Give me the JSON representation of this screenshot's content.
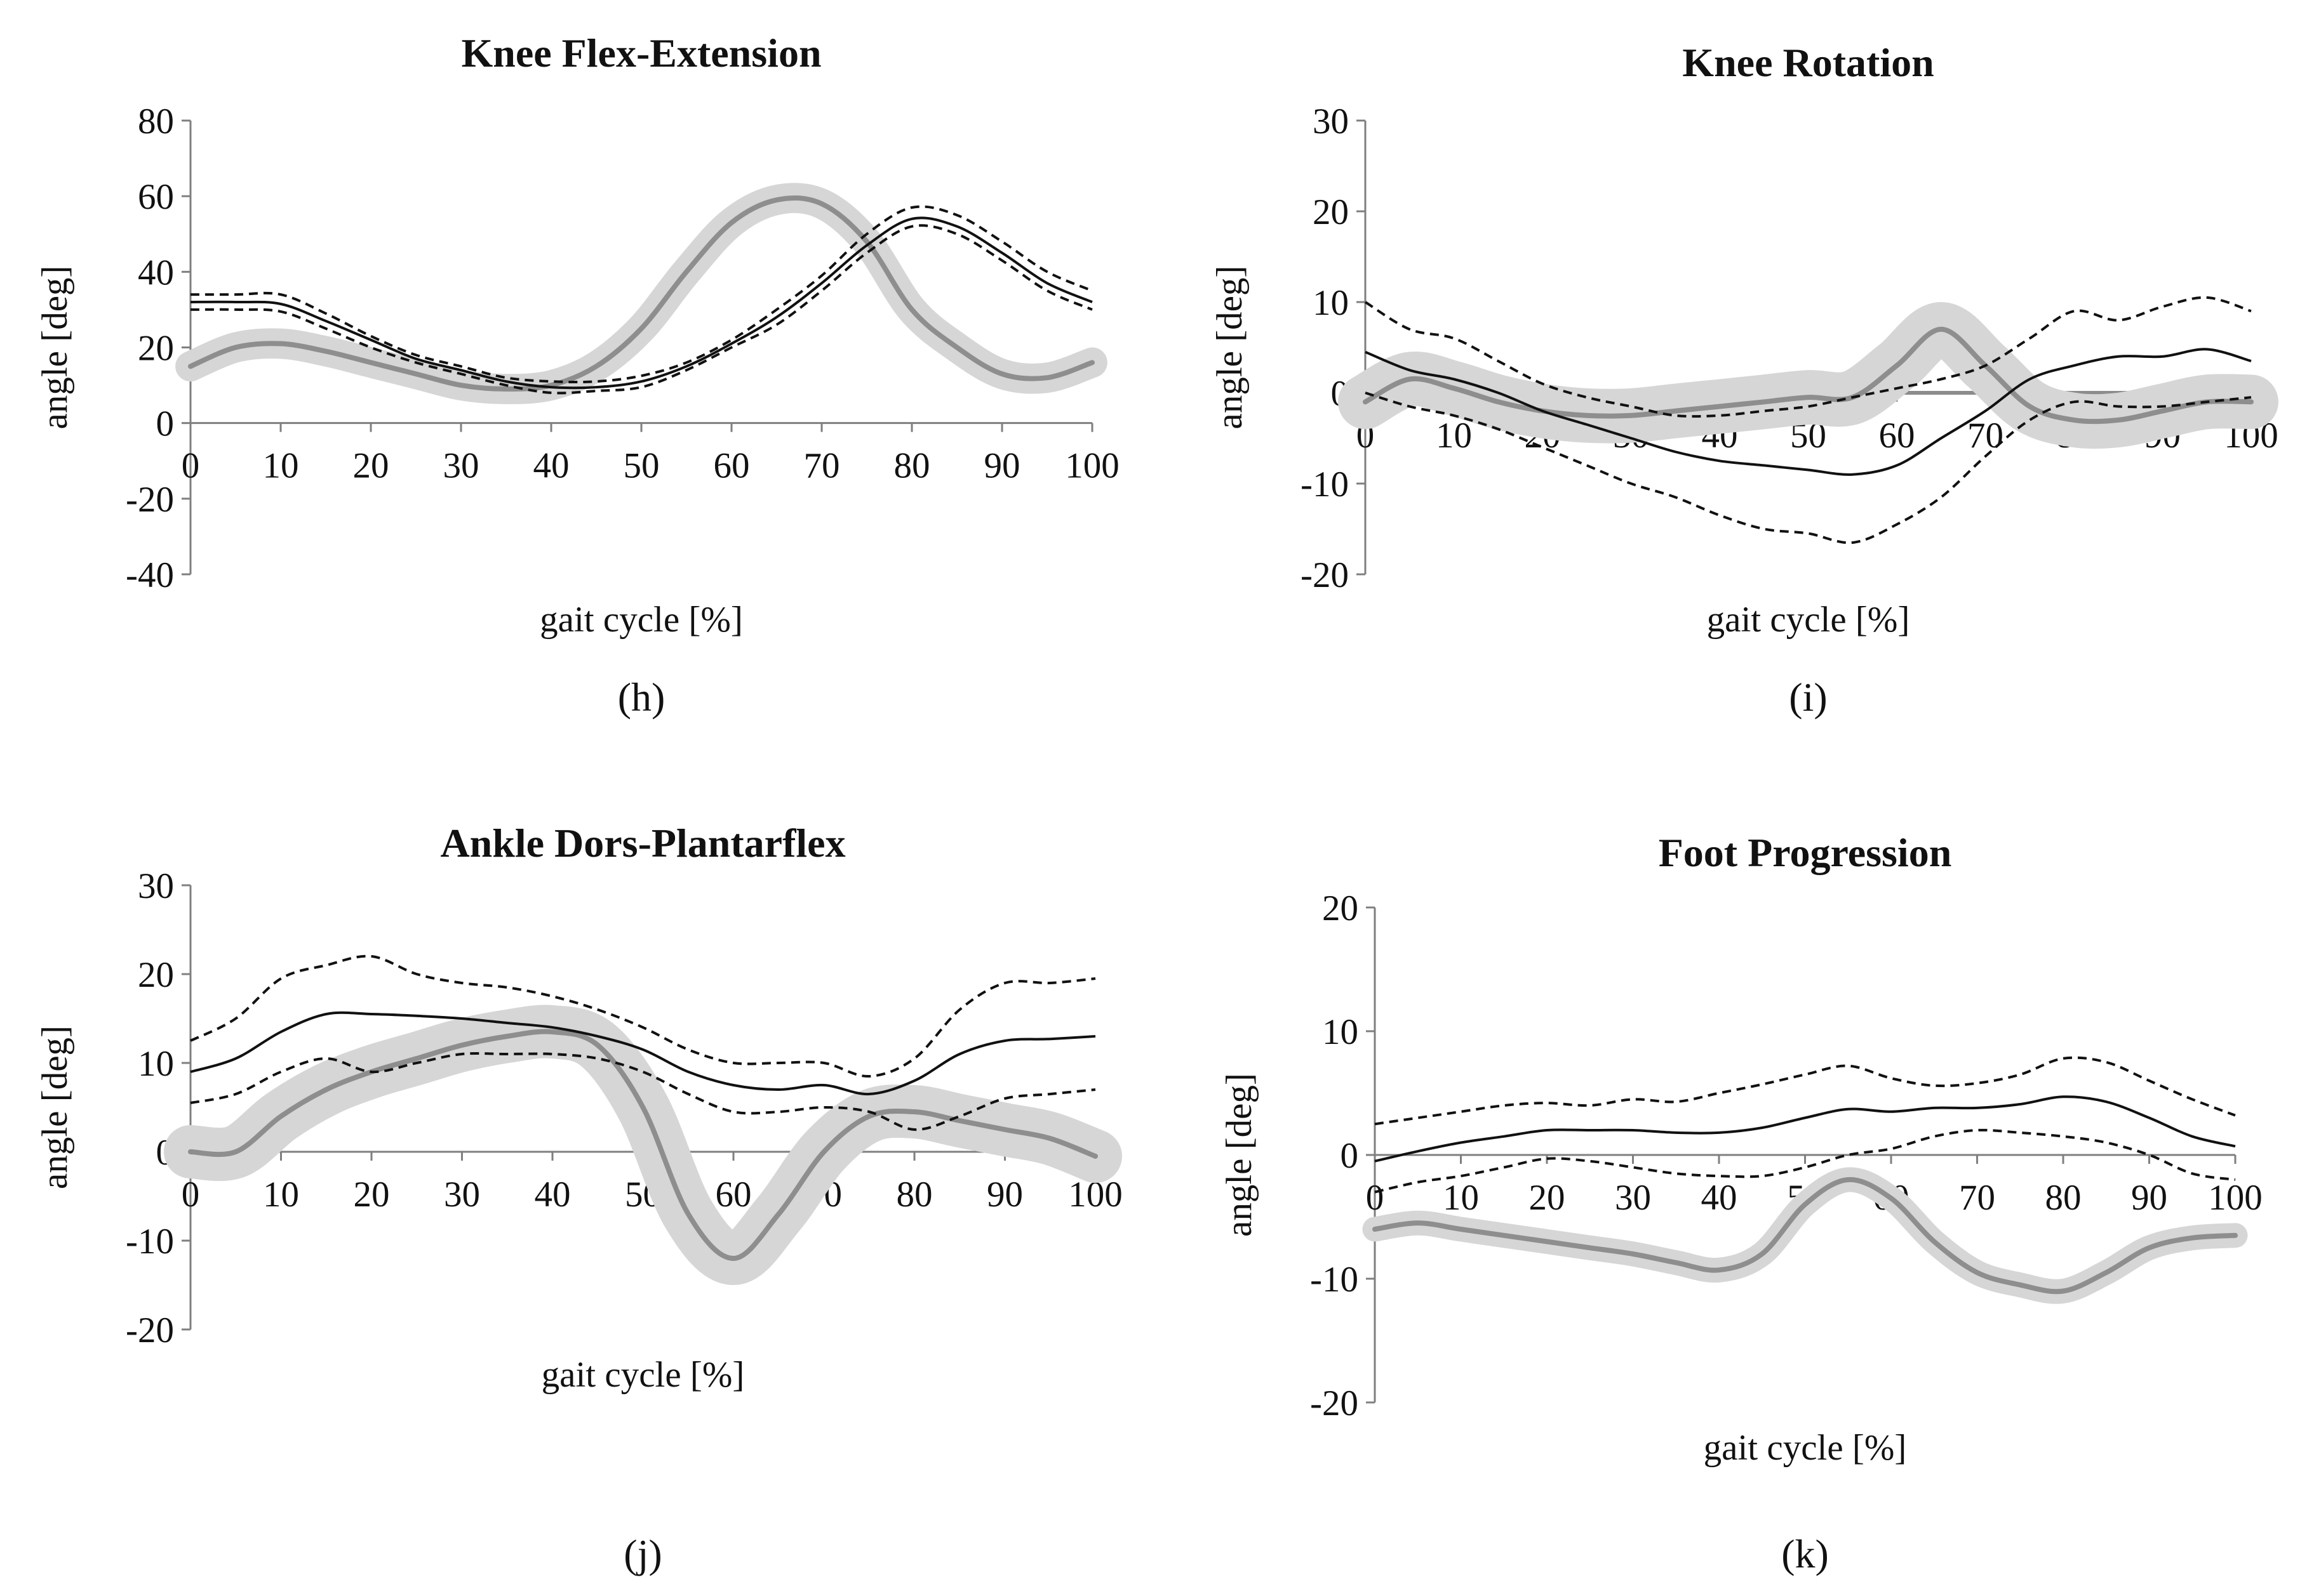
{
  "figure": {
    "panels": [
      "(h)",
      "(i)",
      "(j)",
      "(k)"
    ]
  },
  "chart_data": [
    {
      "type": "line",
      "panel_label": "(h)",
      "title": "Knee Flex-Extension",
      "xlabel": "gait cycle [%]",
      "ylabel": "angle [deg]",
      "xlim": [
        0,
        100
      ],
      "ylim": [
        -40,
        80
      ],
      "xticks": [
        "0",
        "10",
        "20",
        "30",
        "40",
        "50",
        "60",
        "70",
        "80",
        "90",
        "100"
      ],
      "yticks": [
        "80",
        "60",
        "40",
        "20",
        "0",
        "-20",
        "-40"
      ],
      "grid": false,
      "x": [
        0,
        5,
        10,
        15,
        20,
        25,
        30,
        35,
        40,
        45,
        50,
        55,
        60,
        65,
        70,
        75,
        80,
        85,
        90,
        95,
        100
      ],
      "zero_line": false,
      "series": [
        {
          "name": "subject",
          "role": "subject",
          "values": [
            15,
            20,
            21,
            19,
            16,
            13,
            10,
            9,
            10,
            15,
            25,
            40,
            53,
            59,
            58,
            48,
            30,
            20,
            13,
            12,
            16
          ],
          "band": 4
        },
        {
          "name": "reference mean",
          "role": "mean",
          "values": [
            32,
            32,
            31.5,
            27,
            22,
            17,
            14,
            11,
            9.5,
            9.5,
            11,
            15,
            21,
            28,
            37,
            47,
            54,
            52,
            45,
            37,
            32
          ]
        },
        {
          "name": "reference upper",
          "role": "bound",
          "values": [
            34,
            34,
            34,
            29,
            23,
            18,
            15,
            12,
            11,
            11,
            12.5,
            16,
            22,
            30,
            39,
            50,
            57,
            55,
            48,
            40,
            35
          ]
        },
        {
          "name": "reference lower",
          "role": "bound",
          "values": [
            30,
            30,
            29.5,
            25,
            20,
            16,
            13,
            10,
            8,
            8.5,
            9.5,
            14,
            20,
            26,
            35,
            45,
            52,
            50,
            43,
            35,
            30
          ]
        }
      ]
    },
    {
      "type": "line",
      "panel_label": "(i)",
      "title": "Knee Rotation",
      "xlabel": "gait cycle [%]",
      "ylabel": "angle [deg]",
      "xlim": [
        0,
        100
      ],
      "ylim": [
        -20,
        30
      ],
      "xticks": [
        "0",
        "10",
        "20",
        "30",
        "40",
        "50",
        "60",
        "70",
        "80",
        "90",
        "100"
      ],
      "yticks": [
        "30",
        "20",
        "10",
        "0",
        "-10",
        "-20"
      ],
      "grid": false,
      "x": [
        0,
        5,
        10,
        15,
        20,
        25,
        30,
        35,
        40,
        45,
        50,
        55,
        60,
        65,
        70,
        75,
        80,
        85,
        90,
        95,
        100
      ],
      "zero_line": true,
      "series": [
        {
          "name": "subject",
          "role": "subject",
          "values": [
            -1,
            1.5,
            0.5,
            -1,
            -2,
            -2.5,
            -2.5,
            -2,
            -1.5,
            -1,
            -0.5,
            -0.5,
            3,
            7,
            3,
            -1.5,
            -3,
            -3,
            -2,
            -1,
            -1
          ],
          "band": 3
        },
        {
          "name": "reference mean",
          "role": "mean",
          "values": [
            4.5,
            2.5,
            1.5,
            0,
            -2,
            -3.5,
            -5,
            -6.5,
            -7.5,
            -8,
            -8.5,
            -9,
            -8,
            -5,
            -2,
            1.5,
            3,
            4,
            4,
            4.8,
            3.5
          ]
        },
        {
          "name": "reference upper",
          "role": "bound",
          "values": [
            10,
            7,
            6,
            3.5,
            1,
            -0.5,
            -1.5,
            -2.5,
            -2.5,
            -2,
            -1.5,
            -0.5,
            0.5,
            1.5,
            3,
            6,
            9,
            8,
            9.5,
            10.5,
            9
          ]
        },
        {
          "name": "reference lower",
          "role": "bound",
          "values": [
            0,
            -1.5,
            -2.5,
            -4,
            -6,
            -8,
            -10,
            -11.5,
            -13.5,
            -15,
            -15.5,
            -16.5,
            -14.5,
            -11.5,
            -7,
            -3,
            -1,
            -1.5,
            -1.5,
            -1,
            -0.5
          ]
        }
      ]
    },
    {
      "type": "line",
      "panel_label": "(j)",
      "title": "Ankle Dors-Plantarflex",
      "xlabel": "gait cycle [%]",
      "ylabel": "angle [deg]",
      "xlim": [
        0,
        100
      ],
      "ylim": [
        -20,
        30
      ],
      "xticks": [
        "0",
        "10",
        "20",
        "30",
        "40",
        "50",
        "60",
        "70",
        "80",
        "90",
        "100"
      ],
      "yticks": [
        "30",
        "20",
        "10",
        "0",
        "-10",
        "-20"
      ],
      "grid": false,
      "x": [
        0,
        5,
        10,
        15,
        20,
        25,
        30,
        35,
        40,
        45,
        50,
        55,
        60,
        65,
        70,
        75,
        80,
        85,
        90,
        95,
        100
      ],
      "zero_line": false,
      "series": [
        {
          "name": "subject",
          "role": "subject",
          "values": [
            0,
            0,
            4,
            7,
            9,
            10.5,
            12,
            13,
            13.5,
            12,
            5,
            -7,
            -12,
            -7,
            0,
            4,
            4.5,
            3.5,
            2.5,
            1.5,
            -0.5
          ],
          "band": 3
        },
        {
          "name": "reference mean",
          "role": "mean",
          "values": [
            9,
            10.5,
            13.5,
            15.5,
            15.5,
            15.3,
            15,
            14.5,
            14,
            13,
            11.5,
            9,
            7.5,
            7,
            7.5,
            6.5,
            8,
            11,
            12.5,
            12.7,
            13
          ]
        },
        {
          "name": "reference upper",
          "role": "bound",
          "values": [
            12.5,
            15,
            19.5,
            21,
            22,
            20,
            19,
            18.5,
            17.5,
            16,
            14,
            11.5,
            10,
            10,
            10,
            8.5,
            10.5,
            16,
            19,
            19,
            19.5
          ]
        },
        {
          "name": "reference lower",
          "role": "bound",
          "values": [
            5.5,
            6.5,
            9,
            10.5,
            9,
            10,
            11,
            11,
            11,
            10.5,
            9,
            6.5,
            4.5,
            4.5,
            5,
            4.5,
            2.5,
            4,
            6,
            6.5,
            7
          ]
        }
      ]
    },
    {
      "type": "line",
      "panel_label": "(k)",
      "title": "Foot Progression",
      "xlabel": "gait cycle [%]",
      "ylabel": "angle [deg]",
      "xlim": [
        0,
        100
      ],
      "ylim": [
        -20,
        20
      ],
      "xticks": [
        "0",
        "10",
        "20",
        "30",
        "40",
        "50",
        "60",
        "70",
        "80",
        "90",
        "100"
      ],
      "yticks": [
        "20",
        "10",
        "0",
        "-10",
        "-20"
      ],
      "grid": false,
      "x": [
        0,
        5,
        10,
        15,
        20,
        25,
        30,
        35,
        40,
        45,
        50,
        55,
        60,
        65,
        70,
        75,
        80,
        85,
        90,
        95,
        100
      ],
      "zero_line": false,
      "series": [
        {
          "name": "subject",
          "role": "subject",
          "values": [
            -6,
            -5.5,
            -6,
            -6.5,
            -7,
            -7.5,
            -8,
            -8.7,
            -9.3,
            -8,
            -4,
            -2,
            -3.5,
            -7,
            -9.5,
            -10.5,
            -11,
            -9.5,
            -7.5,
            -6.7,
            -6.5
          ],
          "band": 1
        },
        {
          "name": "reference mean",
          "role": "mean",
          "values": [
            -0.5,
            0.3,
            1,
            1.5,
            2,
            2,
            2,
            1.8,
            1.8,
            2.2,
            3,
            3.7,
            3.5,
            3.8,
            3.8,
            4.1,
            4.7,
            4.3,
            3,
            1.5,
            0.7
          ]
        },
        {
          "name": "reference upper",
          "role": "bound",
          "values": [
            2.5,
            3,
            3.5,
            4,
            4.2,
            4,
            4.5,
            4.3,
            5,
            5.7,
            6.5,
            7.2,
            6.2,
            5.6,
            5.8,
            6.5,
            7.8,
            7.5,
            6,
            4.5,
            3.2
          ]
        },
        {
          "name": "reference lower",
          "role": "bound",
          "values": [
            -3,
            -2.2,
            -1.7,
            -1,
            -0.3,
            -0.5,
            -1,
            -1.5,
            -1.7,
            -1.7,
            -1,
            0,
            0.5,
            1.5,
            2,
            1.8,
            1.5,
            1,
            0,
            -1.5,
            -2
          ]
        }
      ]
    }
  ]
}
